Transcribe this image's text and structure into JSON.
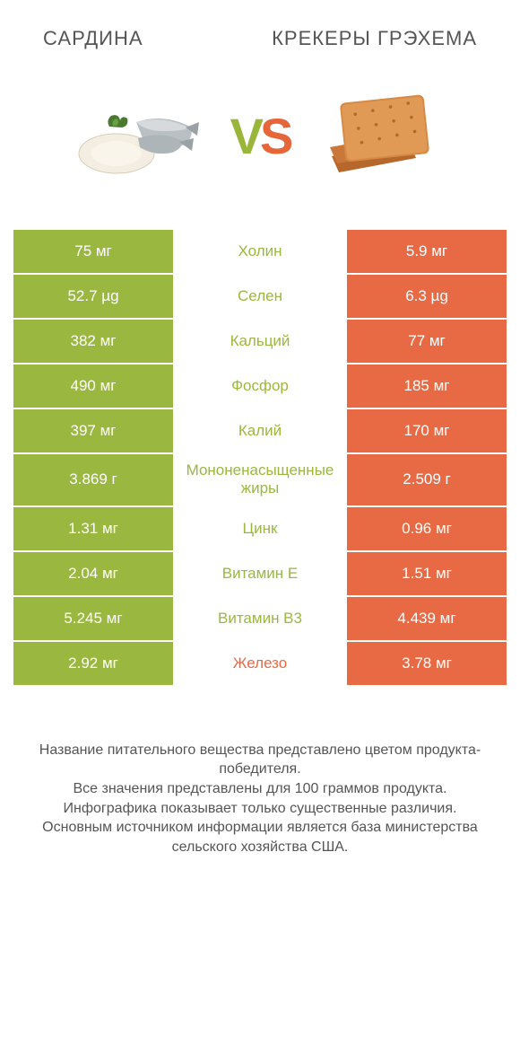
{
  "colors": {
    "green": "#9ab83f",
    "orange": "#e86a45",
    "text": "#555555",
    "background": "#ffffff"
  },
  "header": {
    "left": "Сардина",
    "right": "Крекеры Грэхема"
  },
  "vs": {
    "v": "V",
    "s": "S"
  },
  "rows": [
    {
      "left": "75 мг",
      "mid": "Холин",
      "right": "5.9 мг",
      "winner": "left"
    },
    {
      "left": "52.7 µg",
      "mid": "Селен",
      "right": "6.3 µg",
      "winner": "left"
    },
    {
      "left": "382 мг",
      "mid": "Кальций",
      "right": "77 мг",
      "winner": "left"
    },
    {
      "left": "490 мг",
      "mid": "Фосфор",
      "right": "185 мг",
      "winner": "left"
    },
    {
      "left": "397 мг",
      "mid": "Калий",
      "right": "170 мг",
      "winner": "left"
    },
    {
      "left": "3.869 г",
      "mid": "Мононенасыщенные жиры",
      "right": "2.509 г",
      "winner": "left"
    },
    {
      "left": "1.31 мг",
      "mid": "Цинк",
      "right": "0.96 мг",
      "winner": "left"
    },
    {
      "left": "2.04 мг",
      "mid": "Витамин E",
      "right": "1.51 мг",
      "winner": "left"
    },
    {
      "left": "5.245 мг",
      "mid": "Витамин B3",
      "right": "4.439 мг",
      "winner": "left"
    },
    {
      "left": "2.92 мг",
      "mid": "Железо",
      "right": "3.78 мг",
      "winner": "right"
    }
  ],
  "footnote": {
    "l1": "Название питательного вещества представлено цветом продукта-победителя.",
    "l2": "Все значения представлены для 100 граммов продукта.",
    "l3": "Инфографика показывает только существенные различия.",
    "l4": "Основным источником информации является база министерства сельского хозяйства США."
  }
}
